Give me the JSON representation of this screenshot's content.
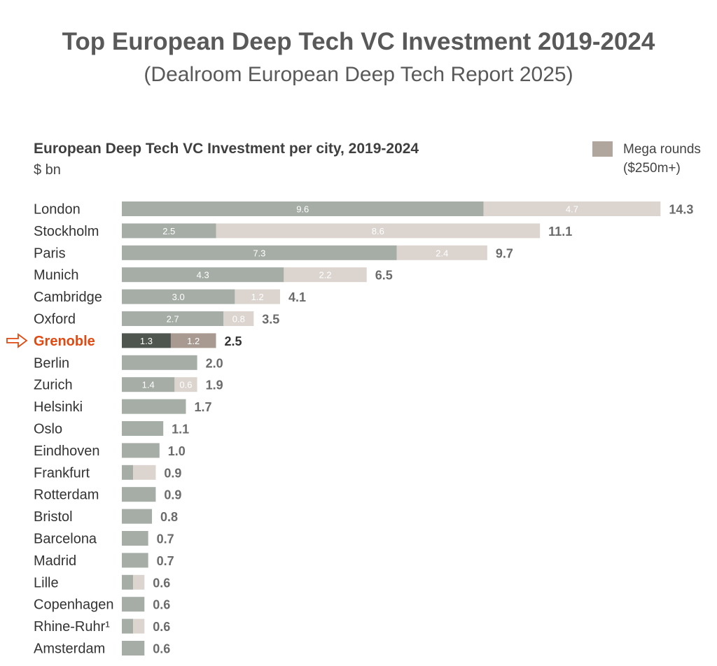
{
  "header": {
    "title": "Top European Deep Tech VC Investment 2019-2024",
    "subtitle": "(Dealroom European Deep Tech Report 2025)"
  },
  "colors": {
    "base": "#a5ada6",
    "mega": "#dcd4cf",
    "base_highlight": "#4f564f",
    "mega_highlight": "#a89a90",
    "legend_swatch": "#b0a69d",
    "highlight_text": "#e04a12"
  },
  "chart_data": {
    "type": "bar",
    "orientation": "horizontal",
    "stacked": true,
    "title": "European Deep Tech VC Investment per city, 2019-2024",
    "unit": "$ bn",
    "legend": {
      "label": "Mega rounds\n($250m+)",
      "position": "top-right"
    },
    "highlight": "Grenoble",
    "categories": [
      "London",
      "Stockholm",
      "Paris",
      "Munich",
      "Cambridge",
      "Oxford",
      "Grenoble",
      "Berlin",
      "Zurich",
      "Helsinki",
      "Oslo",
      "Eindhoven",
      "Frankfurt",
      "Rotterdam",
      "Bristol",
      "Barcelona",
      "Madrid",
      "Lille",
      "Copenhagen",
      "Rhine-Ruhr¹",
      "Amsterdam"
    ],
    "series": [
      {
        "values": [
          9.6,
          2.5,
          7.3,
          4.3,
          3.0,
          2.7,
          1.3,
          2.0,
          1.4,
          1.7,
          1.1,
          1.0,
          0.3,
          0.9,
          0.8,
          0.7,
          0.7,
          0.3,
          0.6,
          0.3,
          0.6
        ],
        "labels": [
          "9.6",
          "2.5",
          "7.3",
          "4.3",
          "3.0",
          "2.7",
          "1.3",
          "",
          "1.4",
          "",
          "",
          "",
          "",
          "",
          "",
          "",
          "",
          "",
          "",
          "",
          ""
        ]
      },
      {
        "name": "Mega rounds ($250m+)",
        "values": [
          4.7,
          8.6,
          2.4,
          2.2,
          1.2,
          0.8,
          1.2,
          0,
          0.6,
          0,
          0,
          0,
          0.6,
          0,
          0,
          0,
          0,
          0.3,
          0,
          0.3,
          0
        ],
        "labels": [
          "4.7",
          "8.6",
          "2.4",
          "2.2",
          "1.2",
          "0.8",
          "1.2",
          "",
          "0.6",
          "",
          "",
          "",
          "",
          "",
          "",
          "",
          "",
          "",
          "",
          "",
          ""
        ]
      }
    ],
    "totals": [
      "14.3",
      "11.1",
      "9.7",
      "6.5",
      "4.1",
      "3.5",
      "2.5",
      "2.0",
      "1.9",
      "1.7",
      "1.1",
      "1.0",
      "0.9",
      "0.9",
      "0.8",
      "0.7",
      "0.7",
      "0.6",
      "0.6",
      "0.6",
      "0.6"
    ]
  }
}
